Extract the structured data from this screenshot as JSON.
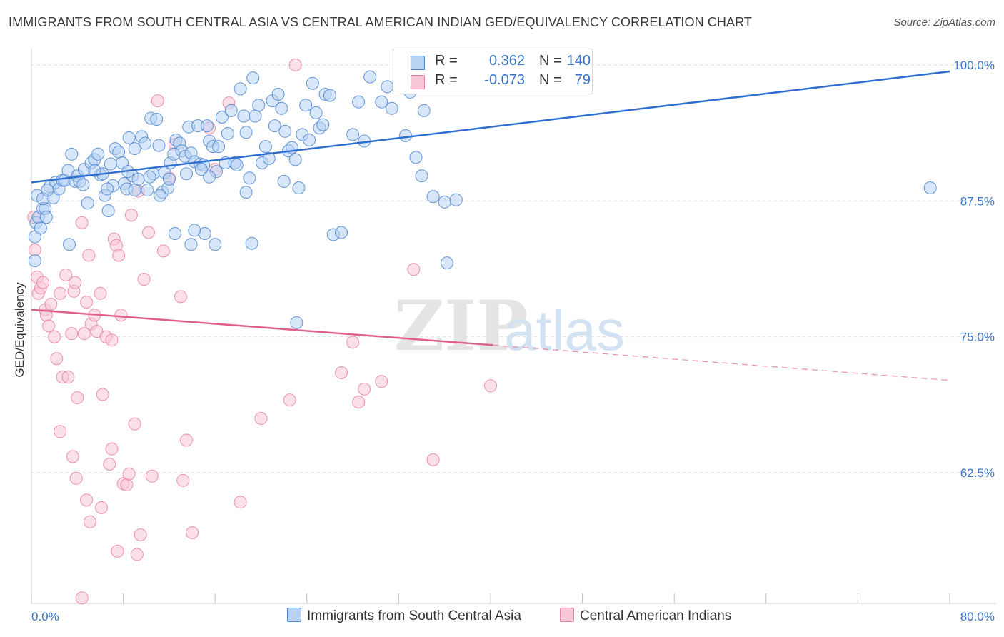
{
  "title": "IMMIGRANTS FROM SOUTH CENTRAL ASIA VS CENTRAL AMERICAN INDIAN GED/EQUIVALENCY CORRELATION CHART",
  "source": "Source: ZipAtlas.com",
  "watermark": {
    "zip": "ZIP",
    "atlas": "atlas"
  },
  "legend": {
    "r_label": "R =",
    "n_label": "N =",
    "blue": {
      "r": "0.362",
      "n": "140"
    },
    "pink": {
      "r": "-0.073",
      "n": "79"
    }
  },
  "colors": {
    "blue_fill": "#b7d2f3",
    "blue_stroke": "#4a84cf",
    "blue_line": "#2f6fcf",
    "pink_fill": "#f7c7d6",
    "pink_stroke": "#e9809f",
    "pink_line": "#e0608a",
    "axis_text": "#3a73c5",
    "grid": "#d9d9d9"
  },
  "chart_data": {
    "type": "scatter",
    "title": "IMMIGRANTS FROM SOUTH CENTRAL ASIA VS CENTRAL AMERICAN INDIAN GED/EQUIVALENCY CORRELATION CHART",
    "xlabel": "",
    "ylabel": "GED/Equivalency",
    "xlim": [
      0,
      80
    ],
    "ylim": [
      50.5,
      101.5
    ],
    "x_tick_labels": [
      "0.0%",
      "80.0%"
    ],
    "y_ticks": [
      62.5,
      75.0,
      87.5,
      100.0
    ],
    "y_tick_labels": [
      "62.5%",
      "75.0%",
      "87.5%",
      "100.0%"
    ],
    "grid": true,
    "legend_position": "top-center",
    "series": [
      {
        "name": "Immigrants from South Central Asia",
        "color": "blue",
        "trend": {
          "x": [
            0,
            80
          ],
          "y": [
            89.2,
            99.4
          ],
          "solid_until": 80
        },
        "points": [
          [
            0.3,
            84.2
          ],
          [
            0.3,
            82.0
          ],
          [
            0.4,
            85.5
          ],
          [
            0.6,
            86.0
          ],
          [
            0.8,
            85.0
          ],
          [
            1.0,
            86.8
          ],
          [
            1.2,
            86.8
          ],
          [
            1.3,
            86.0
          ],
          [
            1.6,
            88.8
          ],
          [
            1.9,
            87.8
          ],
          [
            2.1,
            89.2
          ],
          [
            2.4,
            88.6
          ],
          [
            2.7,
            89.4
          ],
          [
            2.9,
            89.4
          ],
          [
            3.2,
            90.3
          ],
          [
            3.5,
            91.8
          ],
          [
            3.8,
            89.3
          ],
          [
            4.0,
            89.8
          ],
          [
            4.2,
            89.3
          ],
          [
            4.6,
            90.4
          ],
          [
            4.9,
            87.3
          ],
          [
            5.2,
            91.0
          ],
          [
            5.5,
            91.3
          ],
          [
            5.8,
            91.8
          ],
          [
            6.0,
            89.9
          ],
          [
            6.2,
            90.0
          ],
          [
            6.4,
            88.0
          ],
          [
            6.7,
            86.6
          ],
          [
            6.9,
            90.9
          ],
          [
            7.1,
            88.9
          ],
          [
            7.3,
            92.3
          ],
          [
            7.6,
            92.0
          ],
          [
            7.9,
            91.0
          ],
          [
            8.1,
            89.1
          ],
          [
            8.3,
            88.6
          ],
          [
            8.5,
            93.3
          ],
          [
            8.8,
            89.8
          ],
          [
            9.0,
            92.3
          ],
          [
            9.3,
            89.5
          ],
          [
            9.6,
            93.4
          ],
          [
            9.9,
            92.8
          ],
          [
            10.1,
            88.5
          ],
          [
            10.4,
            95.1
          ],
          [
            10.6,
            90.0
          ],
          [
            10.9,
            95.0
          ],
          [
            11.1,
            92.6
          ],
          [
            11.4,
            88.3
          ],
          [
            11.6,
            90.1
          ],
          [
            11.9,
            88.7
          ],
          [
            12.1,
            91.0
          ],
          [
            12.4,
            91.8
          ],
          [
            12.6,
            93.1
          ],
          [
            12.9,
            92.8
          ],
          [
            13.1,
            92.1
          ],
          [
            13.4,
            91.6
          ],
          [
            13.7,
            94.3
          ],
          [
            13.9,
            91.9
          ],
          [
            14.2,
            91.1
          ],
          [
            14.5,
            94.4
          ],
          [
            14.7,
            90.9
          ],
          [
            15.0,
            90.8
          ],
          [
            15.3,
            94.4
          ],
          [
            15.5,
            93.0
          ],
          [
            15.8,
            92.5
          ],
          [
            16.1,
            90.2
          ],
          [
            16.3,
            92.5
          ],
          [
            16.6,
            95.2
          ],
          [
            16.9,
            91.0
          ],
          [
            17.1,
            93.7
          ],
          [
            17.4,
            95.8
          ],
          [
            17.7,
            91.0
          ],
          [
            17.9,
            90.8
          ],
          [
            18.2,
            97.8
          ],
          [
            18.5,
            95.3
          ],
          [
            18.7,
            93.8
          ],
          [
            19.0,
            89.6
          ],
          [
            19.3,
            98.8
          ],
          [
            19.5,
            95.3
          ],
          [
            19.8,
            96.3
          ],
          [
            20.1,
            91.0
          ],
          [
            20.4,
            92.5
          ],
          [
            20.7,
            91.4
          ],
          [
            21.0,
            96.7
          ],
          [
            21.2,
            94.4
          ],
          [
            21.5,
            97.3
          ],
          [
            21.8,
            96.0
          ],
          [
            22.1,
            93.9
          ],
          [
            22.4,
            92.1
          ],
          [
            22.7,
            92.4
          ],
          [
            23.0,
            91.3
          ],
          [
            23.3,
            88.7
          ],
          [
            23.6,
            93.6
          ],
          [
            23.9,
            96.3
          ],
          [
            24.2,
            93.1
          ],
          [
            24.5,
            98.3
          ],
          [
            24.8,
            95.6
          ],
          [
            25.1,
            94.2
          ],
          [
            25.4,
            94.5
          ],
          [
            25.6,
            97.3
          ],
          [
            26.0,
            97.2
          ],
          [
            26.3,
            84.4
          ],
          [
            27.0,
            84.6
          ],
          [
            28.0,
            93.6
          ],
          [
            28.5,
            96.6
          ],
          [
            29.0,
            93.0
          ],
          [
            29.5,
            98.9
          ],
          [
            30.5,
            96.6
          ],
          [
            31.0,
            98.0
          ],
          [
            31.4,
            96.0
          ],
          [
            32.0,
            98.0
          ],
          [
            32.6,
            93.5
          ],
          [
            33.0,
            97.5
          ],
          [
            33.5,
            91.5
          ],
          [
            34.0,
            89.8
          ],
          [
            34.2,
            95.8
          ],
          [
            35.0,
            87.9
          ],
          [
            36.0,
            87.4
          ],
          [
            37.0,
            87.6
          ],
          [
            15.1,
            84.5
          ],
          [
            19.2,
            83.6
          ],
          [
            14.2,
            84.8
          ],
          [
            16.0,
            83.5
          ],
          [
            12.5,
            84.5
          ],
          [
            13.9,
            83.5
          ],
          [
            3.3,
            83.5
          ],
          [
            4.5,
            89.0
          ],
          [
            5.5,
            90.3
          ],
          [
            6.6,
            88.6
          ],
          [
            8.4,
            90.2
          ],
          [
            9.0,
            88.5
          ],
          [
            10.3,
            89.7
          ],
          [
            11.2,
            88.0
          ],
          [
            12.0,
            89.5
          ],
          [
            13.5,
            90.0
          ],
          [
            14.8,
            90.4
          ],
          [
            15.5,
            89.7
          ],
          [
            18.7,
            88.3
          ],
          [
            22.0,
            89.3
          ],
          [
            36.2,
            81.8
          ],
          [
            23.1,
            76.3
          ],
          [
            78.3,
            88.7
          ],
          [
            0.5,
            88.0
          ],
          [
            1.0,
            87.7
          ],
          [
            1.4,
            88.5
          ]
        ]
      },
      {
        "name": "Central American Indians",
        "color": "pink",
        "trend": {
          "x": [
            0,
            80
          ],
          "y": [
            77.5,
            71.0
          ],
          "solid_until": 40.2
        },
        "points": [
          [
            0.2,
            86.0
          ],
          [
            0.3,
            83.0
          ],
          [
            0.5,
            80.5
          ],
          [
            0.6,
            79.0
          ],
          [
            0.8,
            79.5
          ],
          [
            1.0,
            80.0
          ],
          [
            1.2,
            77.5
          ],
          [
            1.3,
            77.0
          ],
          [
            1.5,
            76.0
          ],
          [
            1.7,
            78.0
          ],
          [
            2.0,
            75.0
          ],
          [
            2.2,
            73.0
          ],
          [
            2.5,
            79.0
          ],
          [
            2.7,
            71.3
          ],
          [
            3.0,
            80.7
          ],
          [
            3.2,
            71.3
          ],
          [
            3.5,
            75.3
          ],
          [
            3.7,
            79.2
          ],
          [
            3.8,
            80.0
          ],
          [
            4.0,
            69.4
          ],
          [
            4.4,
            85.5
          ],
          [
            4.6,
            75.3
          ],
          [
            4.8,
            78.2
          ],
          [
            5.0,
            82.5
          ],
          [
            5.2,
            76.2
          ],
          [
            5.5,
            77.0
          ],
          [
            5.7,
            75.5
          ],
          [
            6.0,
            79.0
          ],
          [
            6.2,
            69.7
          ],
          [
            6.5,
            75.0
          ],
          [
            6.8,
            63.3
          ],
          [
            7.0,
            64.7
          ],
          [
            7.2,
            84.0
          ],
          [
            7.4,
            83.4
          ],
          [
            7.6,
            82.5
          ],
          [
            7.8,
            77.0
          ],
          [
            8.0,
            61.5
          ],
          [
            8.3,
            61.4
          ],
          [
            8.5,
            62.4
          ],
          [
            8.7,
            86.2
          ],
          [
            9.0,
            67.0
          ],
          [
            9.3,
            88.4
          ],
          [
            9.5,
            56.8
          ],
          [
            9.8,
            80.3
          ],
          [
            10.2,
            84.6
          ],
          [
            10.5,
            62.2
          ],
          [
            11.0,
            96.7
          ],
          [
            11.5,
            82.9
          ],
          [
            12.0,
            89.6
          ],
          [
            12.5,
            92.7
          ],
          [
            13.0,
            78.7
          ],
          [
            13.5,
            65.5
          ],
          [
            14.0,
            57.0
          ],
          [
            15.5,
            94.2
          ],
          [
            16.0,
            90.4
          ],
          [
            17.2,
            96.5
          ],
          [
            18.2,
            59.8
          ],
          [
            20.0,
            67.5
          ],
          [
            22.5,
            69.2
          ],
          [
            23.0,
            100.0
          ],
          [
            27.0,
            71.7
          ],
          [
            28.0,
            74.5
          ],
          [
            28.5,
            69.0
          ],
          [
            29.0,
            70.2
          ],
          [
            30.5,
            70.9
          ],
          [
            33.3,
            81.2
          ],
          [
            35.0,
            63.7
          ],
          [
            40.0,
            70.5
          ],
          [
            7.0,
            74.7
          ],
          [
            4.8,
            60.0
          ],
          [
            5.1,
            58.0
          ],
          [
            6.1,
            59.3
          ],
          [
            3.6,
            64.0
          ],
          [
            2.5,
            66.3
          ],
          [
            3.9,
            62.0
          ],
          [
            4.4,
            51.0
          ],
          [
            7.5,
            55.3
          ],
          [
            9.2,
            55.0
          ],
          [
            13.2,
            61.8
          ]
        ]
      }
    ]
  },
  "bottom_legend": [
    "Immigrants from South Central Asia",
    "Central American Indians"
  ]
}
